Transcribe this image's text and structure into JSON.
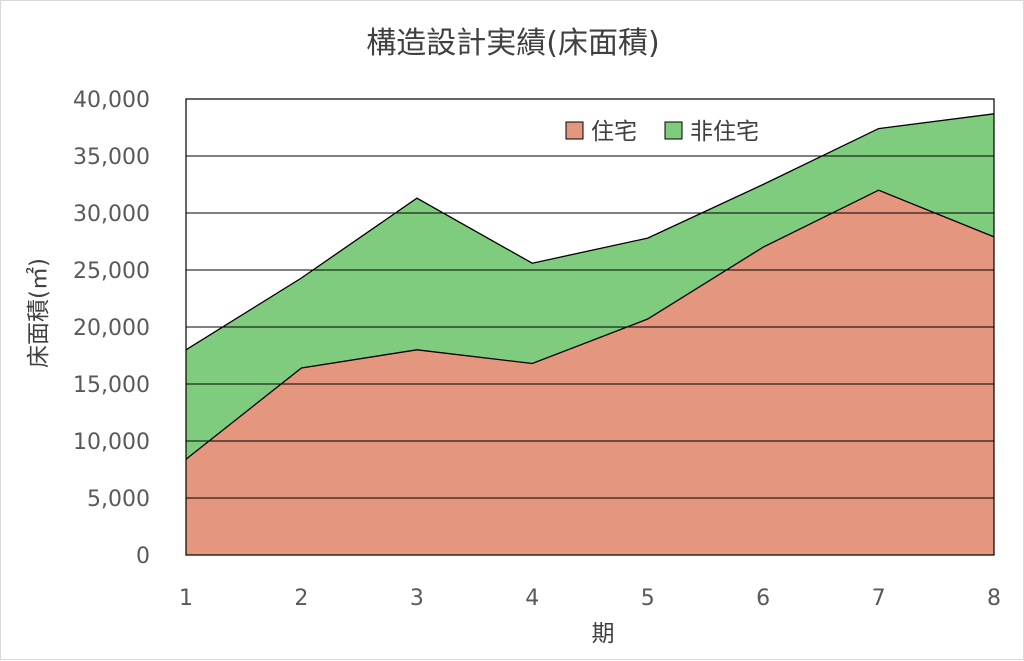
{
  "chart_data": {
    "type": "area",
    "stacked": true,
    "title": "構造設計実績(床面積)",
    "xlabel": "期",
    "ylabel": "床面積(㎡)",
    "x": [
      1,
      2,
      3,
      4,
      5,
      6,
      7,
      8
    ],
    "ylim": [
      0,
      40000
    ],
    "yticks": [
      0,
      5000,
      10000,
      15000,
      20000,
      25000,
      30000,
      35000,
      40000
    ],
    "ytick_labels": [
      "0",
      "5,000",
      "10,000",
      "15,000",
      "20,000",
      "25,000",
      "30,000",
      "35,000",
      "40,000"
    ],
    "grid": true,
    "legend_position": "top-right",
    "series": [
      {
        "name": "住宅",
        "color": "#e5967f",
        "values": [
          8400,
          16400,
          18000,
          16800,
          20700,
          27000,
          32000,
          27900
        ]
      },
      {
        "name": "非住宅",
        "color": "#7fcc7f",
        "values": [
          9600,
          7900,
          13300,
          8800,
          7100,
          5500,
          5400,
          10800
        ]
      }
    ]
  }
}
